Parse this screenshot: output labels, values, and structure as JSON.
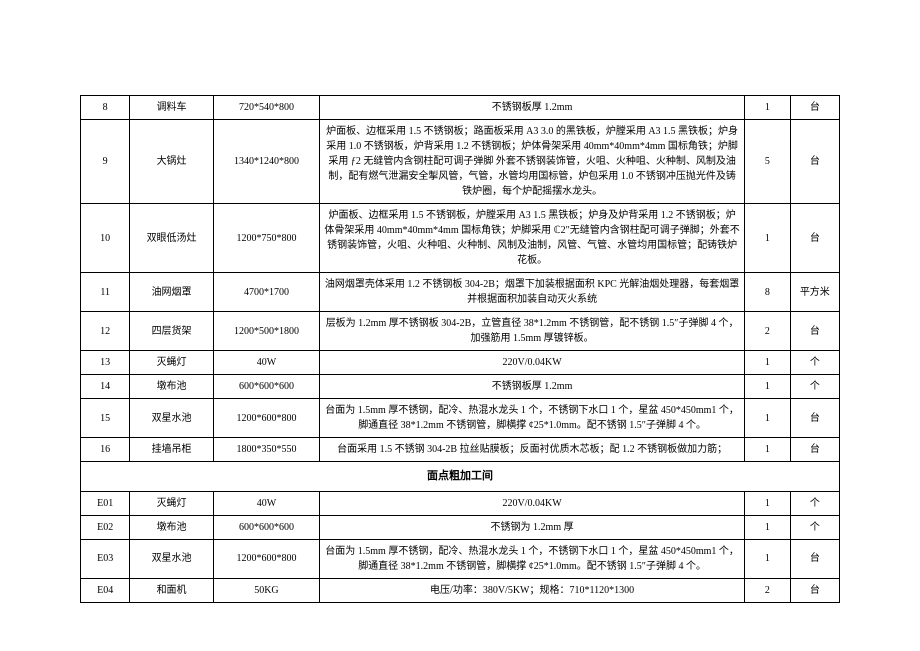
{
  "table": {
    "border_color": "#000000",
    "background_color": "#ffffff",
    "font_size": 10,
    "section_font_size": 11,
    "line_height": 1.5,
    "columns": [
      "idx",
      "name",
      "spec",
      "desc",
      "qty",
      "unit"
    ],
    "rows": [
      {
        "idx": "8",
        "name": "调料车",
        "spec": "720*540*800",
        "desc": "不锈钢板厚 1.2mm",
        "qty": "1",
        "unit": "台"
      },
      {
        "idx": "9",
        "name": "大锅灶",
        "spec": "1340*1240*800",
        "desc": "炉面板、边框采用 1.5 不锈钢板；路面板采用 A3 3.0 的黑铁板，炉膛采用 A3 1.5 黑铁板；炉身采用 1.0 不锈钢板，炉背采用 1.2 不锈钢板；炉体骨架采用 40mm*40mm*4mm 国标角铁；炉脚采用 ƒ2 无缝管内含钢柱配可调子弹脚 外套不锈钢装饰管，火咀、火种咀、火种制、风制及油制，配有燃气泄漏安全掣风管，气管，水管均用国标管，炉包采用 1.0 不锈钢冲压抛光件及铸铁炉圈，每个炉配摇摆水龙头。",
        "qty": "5",
        "unit": "台"
      },
      {
        "idx": "10",
        "name": "双眼低汤灶",
        "spec": "1200*750*800",
        "desc": "炉面板、边框采用 1.5 不锈钢板，炉膛采用 A3 1.5 黑铁板；炉身及炉背采用 1.2 不锈钢板；炉体骨架采用 40mm*40mm*4mm 国标角铁；炉脚采用 ℂ2″无缝管内含钢柱配可调子弹脚；外套不锈钢装饰管，火咀、火种咀、火种制、风制及油制，风管、气管、水管均用国标管；配铸铁炉花板。",
        "qty": "1",
        "unit": "台"
      },
      {
        "idx": "11",
        "name": "油网烟罩",
        "spec": "4700*1700",
        "desc": "油网烟罩壳体采用 1.2 不锈钢板 304-2B；烟罩下加装根据面积 KPC 光解油烟处理器，每套烟罩并根据面积加装自动灭火系统",
        "qty": "8",
        "unit": "平方米"
      },
      {
        "idx": "12",
        "name": "四层货架",
        "spec": "1200*500*1800",
        "desc": "层板为 1.2mm 厚不锈钢板 304-2B，立管直径 38*1.2mm 不锈钢管，配不锈钢 1.5″子弹脚 4 个，加强筋用 1.5mm 厚镀锌板。",
        "qty": "2",
        "unit": "台"
      },
      {
        "idx": "13",
        "name": "灭蝇灯",
        "spec": "40W",
        "desc": "220V/0.04KW",
        "qty": "1",
        "unit": "个"
      },
      {
        "idx": "14",
        "name": "墩布池",
        "spec": "600*600*600",
        "desc": "不锈钢板厚 1.2mm",
        "qty": "1",
        "unit": "个"
      },
      {
        "idx": "15",
        "name": "双星水池",
        "spec": "1200*600*800",
        "desc": "台面为 1.5mm 厚不锈钢，配冷、热混水龙头 1 个，不锈钢下水口 1 个，星盆 450*450mm1 个，脚通直径 38*1.2mm 不锈钢管，脚横撑 ¢25*1.0mm。配不锈钢 1.5″子弹脚 4 个。",
        "qty": "1",
        "unit": "台"
      },
      {
        "idx": "16",
        "name": "挂墙吊柜",
        "spec": "1800*350*550",
        "desc": "台面采用 1.5 不锈钢 304-2B 拉丝贴膜板；反面衬优质木芯板；配 1.2 不锈钢板做加力筋；",
        "qty": "1",
        "unit": "台"
      }
    ],
    "section_title": "面点粗加工间",
    "rows2": [
      {
        "idx": "E01",
        "name": "灭蝇灯",
        "spec": "40W",
        "desc": "220V/0.04KW",
        "qty": "1",
        "unit": "个"
      },
      {
        "idx": "E02",
        "name": "墩布池",
        "spec": "600*600*600",
        "desc": "不锈钢为 1.2mm 厚",
        "qty": "1",
        "unit": "个"
      },
      {
        "idx": "E03",
        "name": "双星水池",
        "spec": "1200*600*800",
        "desc": "台面为 1.5mm 厚不锈钢，配冷、热混水龙头 1 个，不锈钢下水口 1 个，星盆 450*450mm1 个，脚通直径 38*1.2mm 不锈钢管，脚横撑 ¢25*1.0mm。配不锈钢 1.5″子弹脚 4 个。",
        "qty": "1",
        "unit": "台"
      },
      {
        "idx": "E04",
        "name": "和面机",
        "spec": "50KG",
        "desc": "电压/功率：380V/5KW；规格：710*1120*1300",
        "qty": "2",
        "unit": "台"
      }
    ]
  }
}
